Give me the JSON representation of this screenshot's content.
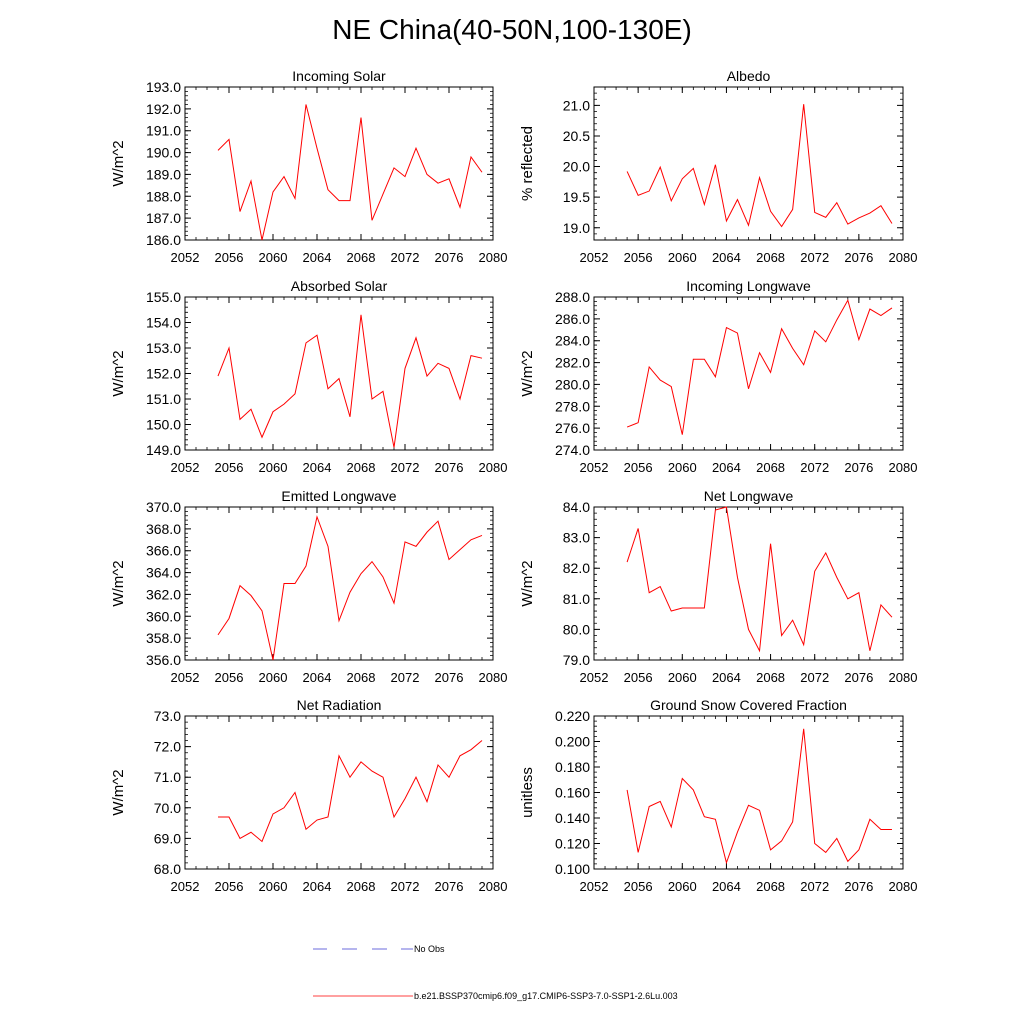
{
  "figure": {
    "title": "NE China(40-50N,100-130E)"
  },
  "legend": {
    "obs_label": "No Obs",
    "obs_color": "#3b3bd1",
    "model_label": "b.e21.BSSP370cmip6.f09_g17.CMIP6-SSP3-7.0-SSP1-2.6Lu.003",
    "model_color": "#ff0000"
  },
  "chart_data": [
    {
      "type": "line",
      "title": "Incoming Solar",
      "ylabel": "W/m^2",
      "xlim": [
        2052,
        2080
      ],
      "xticks": [
        "2052",
        "2056",
        "2060",
        "2064",
        "2068",
        "2072",
        "2076",
        "2080"
      ],
      "ylim": [
        186.0,
        193.0
      ],
      "yticks": [
        "186.0",
        "187.0",
        "188.0",
        "189.0",
        "190.0",
        "191.0",
        "192.0",
        "193.0"
      ],
      "grid": false,
      "x": [
        2055,
        2056,
        2057,
        2058,
        2059,
        2060,
        2061,
        2062,
        2063,
        2064,
        2065,
        2066,
        2067,
        2068,
        2069,
        2070,
        2071,
        2072,
        2073,
        2074,
        2075,
        2076,
        2077,
        2078,
        2079
      ],
      "series": [
        {
          "color": "#ff0000",
          "values": [
            190.1,
            190.6,
            187.3,
            188.7,
            186.0,
            188.2,
            188.9,
            187.9,
            192.2,
            190.2,
            188.3,
            187.8,
            187.8,
            191.6,
            186.9,
            188.1,
            189.3,
            188.9,
            190.2,
            189.0,
            188.6,
            188.8,
            187.5,
            189.8,
            189.1
          ]
        }
      ]
    },
    {
      "type": "line",
      "title": "Albedo",
      "ylabel": "% reflected",
      "xlim": [
        2052,
        2080
      ],
      "xticks": [
        "2052",
        "2056",
        "2060",
        "2064",
        "2068",
        "2072",
        "2076",
        "2080"
      ],
      "ylim": [
        18.8,
        21.3
      ],
      "yticks": [
        "19.0",
        "19.5",
        "20.0",
        "20.5",
        "21.0"
      ],
      "grid": false,
      "x": [
        2055,
        2056,
        2057,
        2058,
        2059,
        2060,
        2061,
        2062,
        2063,
        2064,
        2065,
        2066,
        2067,
        2068,
        2069,
        2070,
        2071,
        2072,
        2073,
        2074,
        2075,
        2076,
        2077,
        2078,
        2079
      ],
      "series": [
        {
          "color": "#ff0000",
          "values": [
            19.92,
            19.53,
            19.6,
            19.99,
            19.44,
            19.8,
            19.97,
            19.38,
            20.03,
            19.11,
            19.46,
            19.04,
            19.82,
            19.27,
            19.02,
            19.3,
            21.02,
            19.25,
            19.17,
            19.41,
            19.06,
            19.16,
            19.24,
            19.36,
            19.07
          ]
        }
      ]
    },
    {
      "type": "line",
      "title": "Absorbed Solar",
      "ylabel": "W/m^2",
      "xlim": [
        2052,
        2080
      ],
      "xticks": [
        "2052",
        "2056",
        "2060",
        "2064",
        "2068",
        "2072",
        "2076",
        "2080"
      ],
      "ylim": [
        149.0,
        155.0
      ],
      "yticks": [
        "149.0",
        "150.0",
        "151.0",
        "152.0",
        "153.0",
        "154.0",
        "155.0"
      ],
      "grid": false,
      "x": [
        2055,
        2056,
        2057,
        2058,
        2059,
        2060,
        2061,
        2062,
        2063,
        2064,
        2065,
        2066,
        2067,
        2068,
        2069,
        2070,
        2071,
        2072,
        2073,
        2074,
        2075,
        2076,
        2077,
        2078,
        2079
      ],
      "series": [
        {
          "color": "#ff0000",
          "values": [
            151.9,
            153.0,
            150.2,
            150.6,
            149.5,
            150.5,
            150.8,
            151.2,
            153.2,
            153.5,
            151.4,
            151.8,
            150.3,
            154.3,
            151.0,
            151.3,
            149.1,
            152.2,
            153.4,
            151.9,
            152.4,
            152.2,
            151.0,
            152.7,
            152.6
          ]
        }
      ]
    },
    {
      "type": "line",
      "title": "Incoming Longwave",
      "ylabel": "W/m^2",
      "xlim": [
        2052,
        2080
      ],
      "xticks": [
        "2052",
        "2056",
        "2060",
        "2064",
        "2068",
        "2072",
        "2076",
        "2080"
      ],
      "ylim": [
        274.0,
        288.0
      ],
      "yticks": [
        "274.0",
        "276.0",
        "278.0",
        "280.0",
        "282.0",
        "284.0",
        "286.0",
        "288.0"
      ],
      "grid": false,
      "x": [
        2055,
        2056,
        2057,
        2058,
        2059,
        2060,
        2061,
        2062,
        2063,
        2064,
        2065,
        2066,
        2067,
        2068,
        2069,
        2070,
        2071,
        2072,
        2073,
        2074,
        2075,
        2076,
        2077,
        2078,
        2079
      ],
      "series": [
        {
          "color": "#ff0000",
          "values": [
            276.1,
            276.5,
            281.6,
            280.4,
            279.8,
            275.4,
            282.3,
            282.3,
            280.7,
            285.2,
            284.7,
            279.6,
            282.9,
            281.1,
            285.1,
            283.3,
            281.8,
            284.9,
            283.9,
            285.9,
            287.7,
            284.1,
            286.9,
            286.3,
            287.0
          ]
        }
      ]
    },
    {
      "type": "line",
      "title": "Emitted Longwave",
      "ylabel": "W/m^2",
      "xlim": [
        2052,
        2080
      ],
      "xticks": [
        "2052",
        "2056",
        "2060",
        "2064",
        "2068",
        "2072",
        "2076",
        "2080"
      ],
      "ylim": [
        356.0,
        370.0
      ],
      "yticks": [
        "356.0",
        "358.0",
        "360.0",
        "362.0",
        "364.0",
        "366.0",
        "368.0",
        "370.0"
      ],
      "grid": false,
      "x": [
        2055,
        2056,
        2057,
        2058,
        2059,
        2060,
        2061,
        2062,
        2063,
        2064,
        2065,
        2066,
        2067,
        2068,
        2069,
        2070,
        2071,
        2072,
        2073,
        2074,
        2075,
        2076,
        2077,
        2078,
        2079
      ],
      "series": [
        {
          "color": "#ff0000",
          "values": [
            358.3,
            359.8,
            362.8,
            361.9,
            360.5,
            356.0,
            363.0,
            363.0,
            364.6,
            369.1,
            366.4,
            359.6,
            362.2,
            363.9,
            365.0,
            363.6,
            361.2,
            366.8,
            366.4,
            367.7,
            368.7,
            365.2,
            366.1,
            367.0,
            367.4
          ]
        }
      ]
    },
    {
      "type": "line",
      "title": "Net Longwave",
      "ylabel": "W/m^2",
      "xlim": [
        2052,
        2080
      ],
      "xticks": [
        "2052",
        "2056",
        "2060",
        "2064",
        "2068",
        "2072",
        "2076",
        "2080"
      ],
      "ylim": [
        79.0,
        84.0
      ],
      "yticks": [
        "79.0",
        "80.0",
        "81.0",
        "82.0",
        "83.0",
        "84.0"
      ],
      "grid": false,
      "x": [
        2055,
        2056,
        2057,
        2058,
        2059,
        2060,
        2061,
        2062,
        2063,
        2064,
        2065,
        2066,
        2067,
        2068,
        2069,
        2070,
        2071,
        2072,
        2073,
        2074,
        2075,
        2076,
        2077,
        2078,
        2079
      ],
      "series": [
        {
          "color": "#ff0000",
          "values": [
            82.2,
            83.3,
            81.2,
            81.4,
            80.6,
            80.7,
            80.7,
            80.7,
            83.9,
            84.0,
            81.7,
            80.0,
            79.3,
            82.8,
            79.8,
            80.3,
            79.5,
            81.9,
            82.5,
            81.7,
            81.0,
            81.2,
            79.3,
            80.8,
            80.4
          ]
        }
      ]
    },
    {
      "type": "line",
      "title": "Net Radiation",
      "ylabel": "W/m^2",
      "xlim": [
        2052,
        2080
      ],
      "xticks": [
        "2052",
        "2056",
        "2060",
        "2064",
        "2068",
        "2072",
        "2076",
        "2080"
      ],
      "ylim": [
        68.0,
        73.0
      ],
      "yticks": [
        "68.0",
        "69.0",
        "70.0",
        "71.0",
        "72.0",
        "73.0"
      ],
      "grid": false,
      "x": [
        2055,
        2056,
        2057,
        2058,
        2059,
        2060,
        2061,
        2062,
        2063,
        2064,
        2065,
        2066,
        2067,
        2068,
        2069,
        2070,
        2071,
        2072,
        2073,
        2074,
        2075,
        2076,
        2077,
        2078,
        2079
      ],
      "series": [
        {
          "color": "#ff0000",
          "values": [
            69.7,
            69.7,
            69.0,
            69.2,
            68.9,
            69.8,
            70.0,
            70.5,
            69.3,
            69.6,
            69.7,
            71.7,
            71.0,
            71.5,
            71.2,
            71.0,
            69.7,
            70.3,
            71.0,
            70.2,
            71.4,
            71.0,
            71.7,
            71.9,
            72.2
          ]
        }
      ]
    },
    {
      "type": "line",
      "title": "Ground Snow Covered Fraction",
      "ylabel": "unitless",
      "xlim": [
        2052,
        2080
      ],
      "xticks": [
        "2052",
        "2056",
        "2060",
        "2064",
        "2068",
        "2072",
        "2076",
        "2080"
      ],
      "ylim": [
        0.1,
        0.22
      ],
      "yticks": [
        "0.100",
        "0.120",
        "0.140",
        "0.160",
        "0.180",
        "0.200",
        "0.220"
      ],
      "grid": false,
      "x": [
        2055,
        2056,
        2057,
        2058,
        2059,
        2060,
        2061,
        2062,
        2063,
        2064,
        2065,
        2066,
        2067,
        2068,
        2069,
        2070,
        2071,
        2072,
        2073,
        2074,
        2075,
        2076,
        2077,
        2078,
        2079
      ],
      "series": [
        {
          "color": "#ff0000",
          "values": [
            0.162,
            0.113,
            0.149,
            0.153,
            0.133,
            0.171,
            0.162,
            0.141,
            0.139,
            0.105,
            0.129,
            0.15,
            0.146,
            0.115,
            0.122,
            0.137,
            0.21,
            0.12,
            0.113,
            0.124,
            0.106,
            0.115,
            0.139,
            0.131,
            0.131
          ]
        }
      ]
    }
  ]
}
